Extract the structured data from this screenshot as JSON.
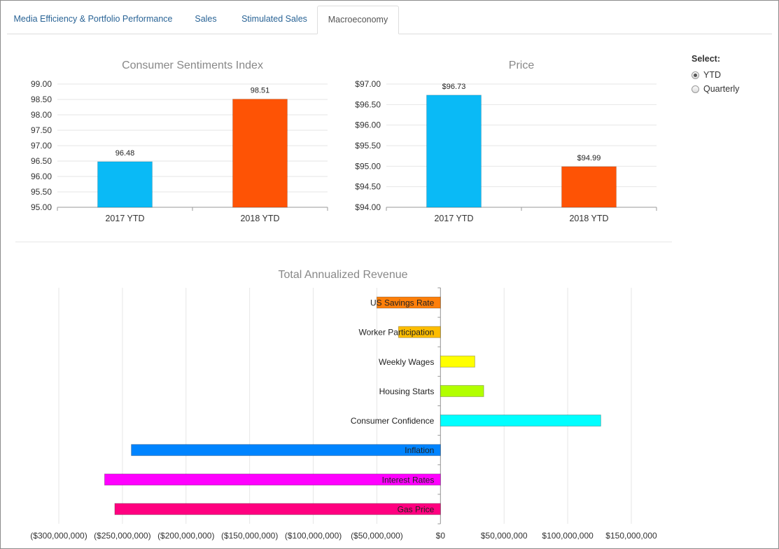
{
  "tabs": [
    {
      "label": "Media Efficiency & Portfolio Performance",
      "active": false
    },
    {
      "label": "Sales",
      "active": false
    },
    {
      "label": "Stimulated Sales",
      "active": false
    },
    {
      "label": "Macroeconomy",
      "active": true
    }
  ],
  "select": {
    "title": "Select:",
    "options": [
      {
        "label": "YTD",
        "checked": true
      },
      {
        "label": "Quarterly",
        "checked": false
      }
    ]
  },
  "chart_data": [
    {
      "type": "bar",
      "title": "Consumer Sentiments Index",
      "categories": [
        "2017 YTD",
        "2018 YTD"
      ],
      "values": [
        96.48,
        98.51
      ],
      "data_labels": [
        "96.48",
        "98.51"
      ],
      "colors": [
        "#0abaf6",
        "#fe5305"
      ],
      "ylim": [
        95.0,
        99.0
      ],
      "yticks": [
        "95.00",
        "95.50",
        "96.00",
        "96.50",
        "97.00",
        "97.50",
        "98.00",
        "98.50",
        "99.00"
      ],
      "grid": true
    },
    {
      "type": "bar",
      "title": "Price",
      "categories": [
        "2017 YTD",
        "2018 YTD"
      ],
      "values": [
        96.73,
        94.99
      ],
      "data_labels": [
        "$96.73",
        "$94.99"
      ],
      "colors": [
        "#0abaf6",
        "#fe5305"
      ],
      "ylim": [
        94.0,
        97.0
      ],
      "yticks": [
        "$94.00",
        "$94.50",
        "$95.00",
        "$95.50",
        "$96.00",
        "$96.50",
        "$97.00"
      ],
      "grid": true
    },
    {
      "type": "bar",
      "orientation": "horizontal",
      "title": "Total Annualized Revenue",
      "categories": [
        "US Savings Rate",
        "Worker Participation",
        "Weekly Wages",
        "Housing Starts",
        "Consumer Confidence",
        "Inflation",
        "Interest Rates",
        "Gas Price"
      ],
      "values": [
        -50000000,
        -33000000,
        27000000,
        34000000,
        126000000,
        -243000000,
        -264000000,
        -256000000
      ],
      "colors": [
        "#fe7f0a",
        "#fdbd00",
        "#ffff00",
        "#b2ff00",
        "#00ffff",
        "#0084ff",
        "#ff00ff",
        "#ff0080"
      ],
      "xlim": [
        -300000000,
        150000000
      ],
      "xticks": [
        {
          "value": -300000000,
          "label": "($300,000,000)"
        },
        {
          "value": -250000000,
          "label": "($250,000,000)"
        },
        {
          "value": -200000000,
          "label": "($200,000,000)"
        },
        {
          "value": -150000000,
          "label": "($150,000,000)"
        },
        {
          "value": -100000000,
          "label": "($100,000,000)"
        },
        {
          "value": -50000000,
          "label": "($50,000,000)"
        },
        {
          "value": 0,
          "label": "$0"
        },
        {
          "value": 50000000,
          "label": "$50,000,000"
        },
        {
          "value": 100000000,
          "label": "$100,000,000"
        },
        {
          "value": 150000000,
          "label": "$150,000,000"
        }
      ],
      "grid": true
    }
  ]
}
